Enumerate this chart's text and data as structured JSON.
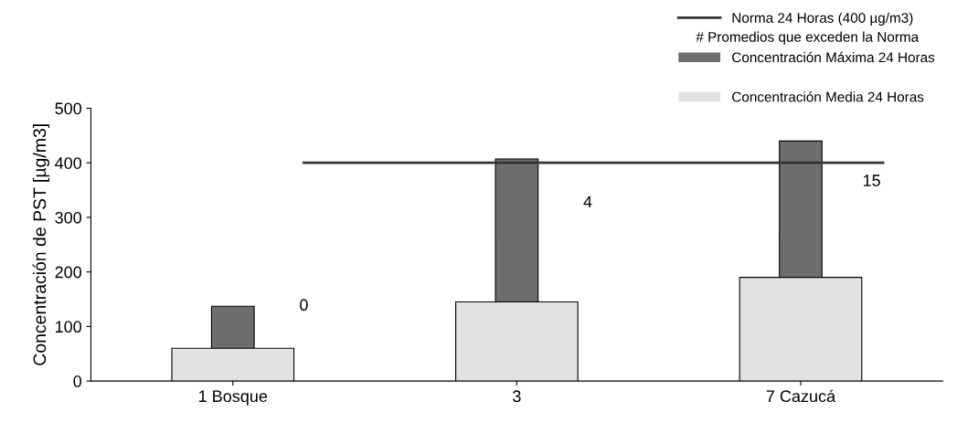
{
  "chart_data": {
    "type": "bar",
    "ylabel": "Concentración de PST [µg/m3]",
    "categories": [
      "1 Bosque",
      "3",
      "7 Cazucá"
    ],
    "series": [
      {
        "name": "Concentración Máxima 24 Horas",
        "color": "#6e6e6e",
        "values": [
          137,
          407,
          440
        ]
      },
      {
        "name": "Concentración Media 24 Horas",
        "color": "#e2e2e2",
        "values": [
          60,
          145,
          190
        ]
      }
    ],
    "ylim": [
      0,
      500
    ],
    "yticks": [
      0,
      100,
      200,
      300,
      400,
      500
    ],
    "ref_lines": [
      {
        "axis": "y",
        "value": 400,
        "label": "Norma 24 Horas (400 µg/m3)",
        "color": "#333333"
      }
    ],
    "annotations": [
      "0",
      "4",
      "15",
      "# Promedios que exceden la Norma"
    ],
    "legend": "top right",
    "grid": false
  }
}
